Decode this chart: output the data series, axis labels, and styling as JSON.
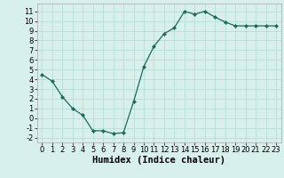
{
  "x": [
    0,
    1,
    2,
    3,
    4,
    5,
    6,
    7,
    8,
    9,
    10,
    11,
    12,
    13,
    14,
    15,
    16,
    17,
    18,
    19,
    20,
    21,
    22,
    23
  ],
  "y": [
    4.5,
    3.8,
    2.2,
    1.0,
    0.3,
    -1.3,
    -1.3,
    -1.6,
    -1.5,
    1.7,
    5.3,
    7.4,
    8.7,
    9.3,
    11.0,
    10.7,
    11.0,
    10.4,
    9.9,
    9.5,
    9.5,
    9.5,
    9.5,
    9.5
  ],
  "line_color": "#1a6b5a",
  "marker": "D",
  "marker_size": 2.2,
  "xlabel": "Humidex (Indice chaleur)",
  "ylim": [
    -2.5,
    11.8
  ],
  "xlim": [
    -0.5,
    23.5
  ],
  "yticks": [
    -2,
    -1,
    0,
    1,
    2,
    3,
    4,
    5,
    6,
    7,
    8,
    9,
    10,
    11
  ],
  "xticks": [
    0,
    1,
    2,
    3,
    4,
    5,
    6,
    7,
    8,
    9,
    10,
    11,
    12,
    13,
    14,
    15,
    16,
    17,
    18,
    19,
    20,
    21,
    22,
    23
  ],
  "grid_color": "#b8ddd8",
  "bg_color": "#d8f0ec",
  "xlabel_fontsize": 7.5,
  "tick_fontsize": 6.0
}
